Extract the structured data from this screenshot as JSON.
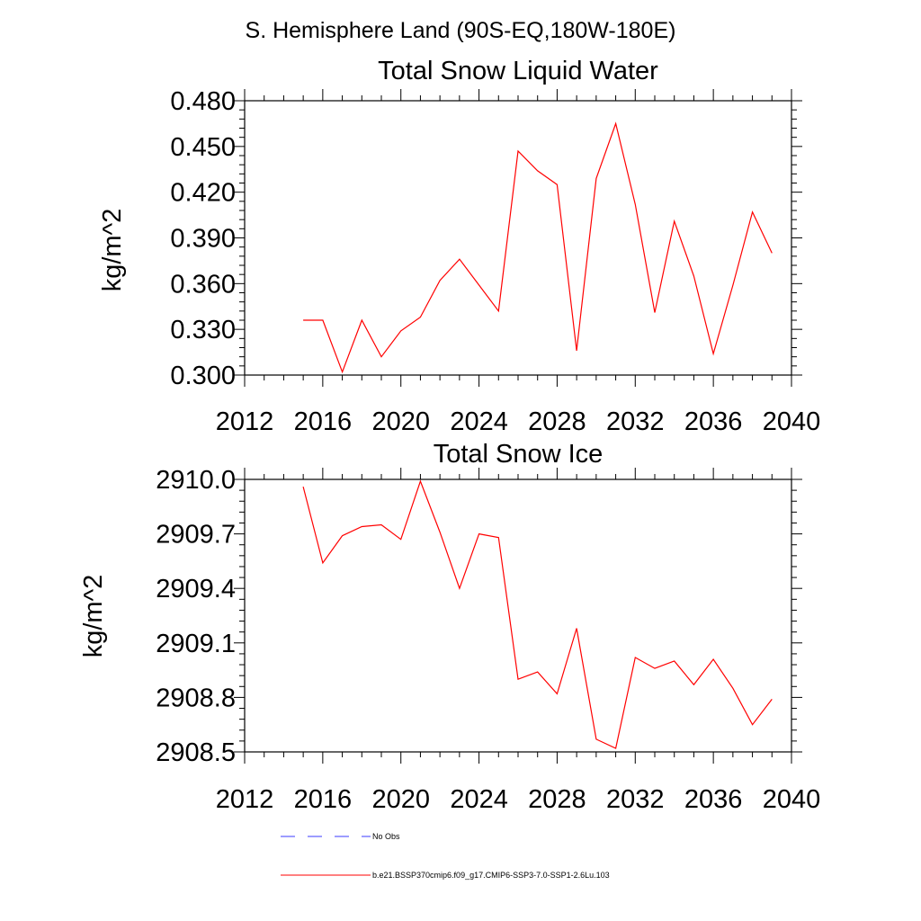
{
  "page_title": "S. Hemisphere Land (90S-EQ,180W-180E)",
  "chart_data": [
    {
      "type": "line",
      "title": "Total Snow Liquid Water",
      "xlabel": "",
      "ylabel": "kg/m^2",
      "xlim": [
        2012,
        2040
      ],
      "ylim": [
        0.3,
        0.48
      ],
      "x_ticks": [
        "2012",
        "2016",
        "2020",
        "2024",
        "2028",
        "2032",
        "2036",
        "2040"
      ],
      "y_ticks": [
        "0.300",
        "0.330",
        "0.360",
        "0.390",
        "0.420",
        "0.450",
        "0.480"
      ],
      "grid": false,
      "x": [
        2015,
        2016,
        2017,
        2018,
        2019,
        2020,
        2021,
        2022,
        2023,
        2024,
        2025,
        2026,
        2027,
        2028,
        2029,
        2030,
        2031,
        2032,
        2033,
        2034,
        2035,
        2036,
        2037,
        2038,
        2039
      ],
      "series": [
        {
          "name": "b.e21.BSSP370cmip6.f09_g17.CMIP6-SSP3-7.0-SSP1-2.6Lu.103",
          "color": "#ff0000",
          "values": [
            0.336,
            0.336,
            0.302,
            0.336,
            0.312,
            0.329,
            0.338,
            0.362,
            0.376,
            0.359,
            0.342,
            0.447,
            0.434,
            0.425,
            0.316,
            0.429,
            0.465,
            0.412,
            0.341,
            0.401,
            0.365,
            0.314,
            0.359,
            0.407,
            0.38
          ]
        }
      ]
    },
    {
      "type": "line",
      "title": "Total Snow Ice",
      "xlabel": "",
      "ylabel": "kg/m^2",
      "xlim": [
        2012,
        2040
      ],
      "ylim": [
        2908.5,
        2910.0
      ],
      "x_ticks": [
        "2012",
        "2016",
        "2020",
        "2024",
        "2028",
        "2032",
        "2036",
        "2040"
      ],
      "y_ticks": [
        "2908.5",
        "2908.8",
        "2909.1",
        "2909.4",
        "2909.7",
        "2910.0"
      ],
      "grid": false,
      "x": [
        2015,
        2016,
        2017,
        2018,
        2019,
        2020,
        2021,
        2022,
        2023,
        2024,
        2025,
        2026,
        2027,
        2028,
        2029,
        2030,
        2031,
        2032,
        2033,
        2034,
        2035,
        2036,
        2037,
        2038,
        2039
      ],
      "series": [
        {
          "name": "b.e21.BSSP370cmip6.f09_g17.CMIP6-SSP3-7.0-SSP1-2.6Lu.103",
          "color": "#ff0000",
          "values": [
            2909.96,
            2909.54,
            2909.69,
            2909.74,
            2909.75,
            2909.67,
            2909.99,
            2909.71,
            2909.4,
            2909.7,
            2909.68,
            2908.9,
            2908.94,
            2908.82,
            2909.18,
            2908.57,
            2908.52,
            2909.02,
            2908.96,
            2909.0,
            2908.87,
            2909.01,
            2908.85,
            2908.65,
            2908.79
          ]
        }
      ]
    }
  ],
  "legend": {
    "entries": [
      {
        "label": "No Obs",
        "color": "#3b3bff",
        "style": "dashed"
      },
      {
        "label": "b.e21.BSSP370cmip6.f09_g17.CMIP6-SSP3-7.0-SSP1-2.6Lu.103",
        "color": "#ff0000",
        "style": "solid"
      }
    ]
  }
}
